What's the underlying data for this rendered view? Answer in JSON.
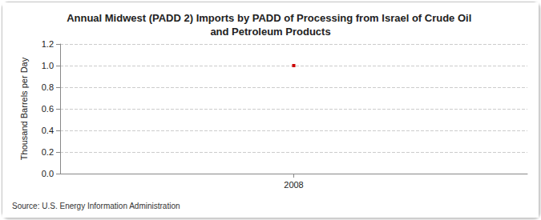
{
  "chart_data": {
    "type": "line",
    "title": "Annual Midwest (PADD 2) Imports by PADD of Processing from Israel of Crude Oil and Petroleum Products",
    "y_label": "Thousand Barrels per Day",
    "categories": [
      "2008"
    ],
    "values": [
      1.0
    ],
    "color": "#cc0000",
    "marker": "rect",
    "ylim": [
      0,
      1.2
    ],
    "yticks": [
      {
        "value": 0,
        "label": "0.0"
      },
      {
        "value": 0.2,
        "label": "0.2"
      },
      {
        "value": 0.4,
        "label": "0.4"
      },
      {
        "value": 0.6,
        "label": "0.6"
      },
      {
        "value": 0.8,
        "label": "0.8"
      },
      {
        "value": 1.0,
        "label": "1.0"
      },
      {
        "value": 1.2,
        "label": "1.2"
      }
    ],
    "grid": true,
    "source": "Source: U.S. Energy Information Administration"
  }
}
